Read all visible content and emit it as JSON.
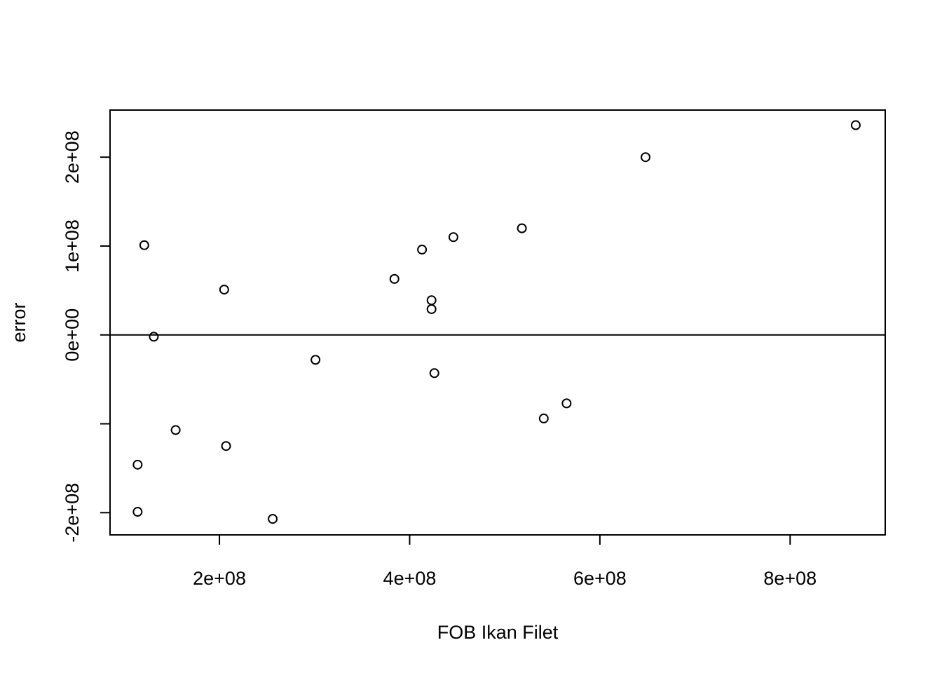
{
  "chart_data": {
    "type": "scatter",
    "title": "",
    "xlabel": "FOB Ikan Filet",
    "ylabel": "error",
    "xlim": [
      85000000,
      900000000
    ],
    "ylim": [
      -225000000,
      253000000
    ],
    "x_ticks": [
      {
        "value": 200000000,
        "label": "2e+08"
      },
      {
        "value": 400000000,
        "label": "4e+08"
      },
      {
        "value": 600000000,
        "label": "6e+08"
      },
      {
        "value": 800000000,
        "label": "8e+08"
      }
    ],
    "y_ticks": [
      {
        "value": -200000000,
        "label": "-2e+08"
      },
      {
        "value": -100000000,
        "label": ""
      },
      {
        "value": 0,
        "label": "0e+00"
      },
      {
        "value": 100000000,
        "label": "1e+08"
      },
      {
        "value": 200000000,
        "label": "2e+08"
      }
    ],
    "reference_line_y": 0,
    "grid": false,
    "marker": "open-circle",
    "points": [
      {
        "x": 121000000,
        "y": 101000000
      },
      {
        "x": 131000000,
        "y": -2000000
      },
      {
        "x": 114000000,
        "y": -146000000
      },
      {
        "x": 114000000,
        "y": -199000000
      },
      {
        "x": 154000000,
        "y": -107000000
      },
      {
        "x": 205000000,
        "y": 51000000
      },
      {
        "x": 207000000,
        "y": -125000000
      },
      {
        "x": 256000000,
        "y": -207000000
      },
      {
        "x": 301000000,
        "y": -28000000
      },
      {
        "x": 384000000,
        "y": 63000000
      },
      {
        "x": 413000000,
        "y": 96000000
      },
      {
        "x": 423000000,
        "y": 39000000
      },
      {
        "x": 423000000,
        "y": 29000000
      },
      {
        "x": 426000000,
        "y": -43000000
      },
      {
        "x": 446000000,
        "y": 110000000
      },
      {
        "x": 518000000,
        "y": 120000000
      },
      {
        "x": 541000000,
        "y": -94000000
      },
      {
        "x": 565000000,
        "y": -77000000
      },
      {
        "x": 648000000,
        "y": 200000000
      },
      {
        "x": 869000000,
        "y": 236000000
      }
    ]
  }
}
